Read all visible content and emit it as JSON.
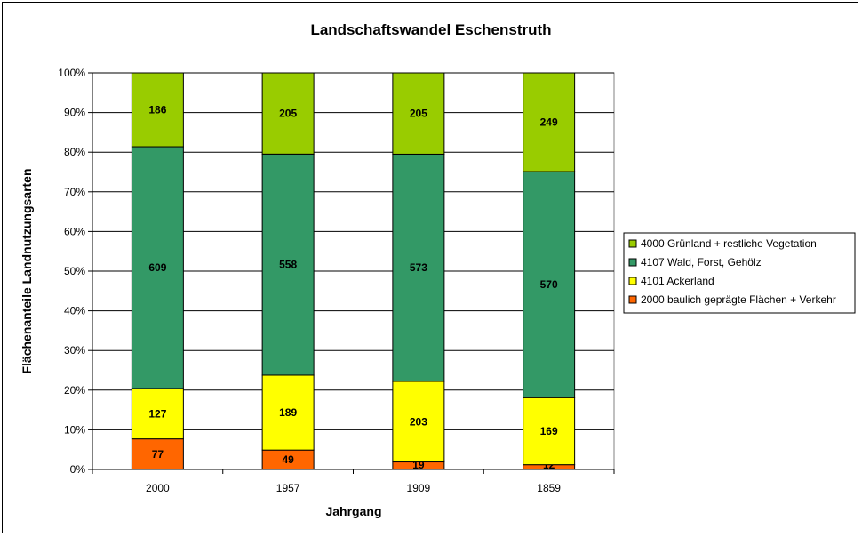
{
  "chart_data": {
    "type": "bar",
    "stacked": "percent",
    "title": "Landschaftswandel Eschenstruth",
    "xlabel": "Jahrgang",
    "ylabel": "Flächenanteile Landnutzungsarten",
    "categories": [
      "2000",
      "1957",
      "1909",
      "1859"
    ],
    "y_ticks": [
      "0%",
      "10%",
      "20%",
      "30%",
      "40%",
      "50%",
      "60%",
      "70%",
      "80%",
      "90%",
      "100%"
    ],
    "ylim": [
      0,
      100
    ],
    "grid": true,
    "legend_position": "right",
    "series": [
      {
        "name": "2000 baulich geprägte Flächen + Verkehr",
        "color": "#FF6600",
        "values": [
          77,
          49,
          19,
          12
        ]
      },
      {
        "name": "4101 Ackerland",
        "color": "#FFFF00",
        "values": [
          127,
          189,
          203,
          169
        ]
      },
      {
        "name": "4107 Wald, Forst, Gehölz",
        "color": "#339966",
        "values": [
          609,
          558,
          573,
          570
        ]
      },
      {
        "name": "4000 Grünland + restliche Vegetation",
        "color": "#99CC00",
        "values": [
          186,
          205,
          205,
          249
        ]
      }
    ]
  }
}
